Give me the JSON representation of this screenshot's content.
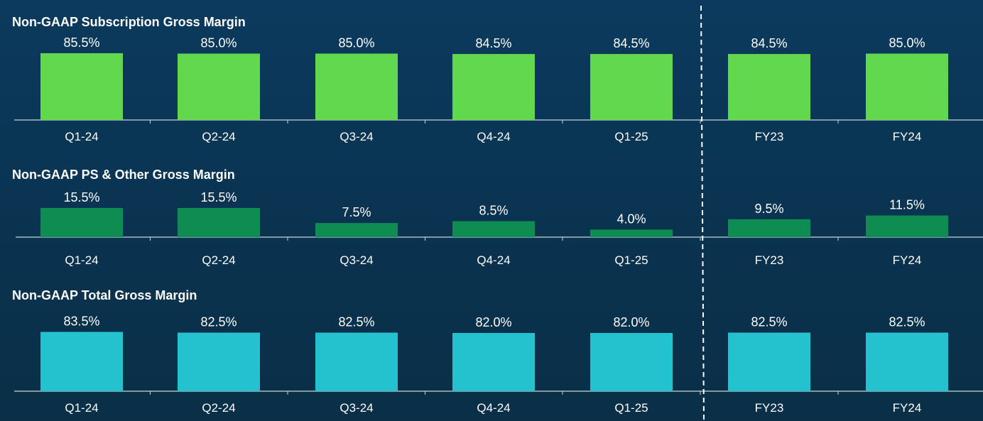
{
  "chart_data": [
    {
      "type": "bar",
      "title": "Non-GAAP Subscription Gross Margin",
      "categories": [
        "Q1-24",
        "Q2-24",
        "Q3-24",
        "Q4-24",
        "Q1-25",
        "FY23",
        "FY24"
      ],
      "values": [
        85.5,
        85.0,
        85.0,
        84.5,
        84.5,
        84.5,
        85.0
      ],
      "value_labels": [
        "85.5%",
        "85.0%",
        "85.0%",
        "84.5%",
        "84.5%",
        "84.5%",
        "85.0%"
      ],
      "color": "#62d84e",
      "grid": false
    },
    {
      "type": "bar",
      "title": "Non-GAAP PS & Other Gross Margin",
      "categories": [
        "Q1-24",
        "Q2-24",
        "Q3-24",
        "Q4-24",
        "Q1-25",
        "FY23",
        "FY24"
      ],
      "values": [
        15.5,
        15.5,
        7.5,
        8.5,
        4.0,
        9.5,
        11.5
      ],
      "value_labels": [
        "15.5%",
        "15.5%",
        "7.5%",
        "8.5%",
        "4.0%",
        "9.5%",
        "11.5%"
      ],
      "color": "#0e8c52",
      "grid": false
    },
    {
      "type": "bar",
      "title": "Non-GAAP Total Gross Margin",
      "categories": [
        "Q1-24",
        "Q2-24",
        "Q3-24",
        "Q4-24",
        "Q1-25",
        "FY23",
        "FY24"
      ],
      "values": [
        83.5,
        82.5,
        82.5,
        82.0,
        82.0,
        82.5,
        82.5
      ],
      "value_labels": [
        "83.5%",
        "82.5%",
        "82.5%",
        "82.0%",
        "82.0%",
        "82.5%",
        "82.5%"
      ],
      "color": "#24c2cf",
      "grid": false
    }
  ],
  "colors": {
    "axis": "#c9d3dc",
    "divider": "#ffffff",
    "text": "#ffffff"
  }
}
